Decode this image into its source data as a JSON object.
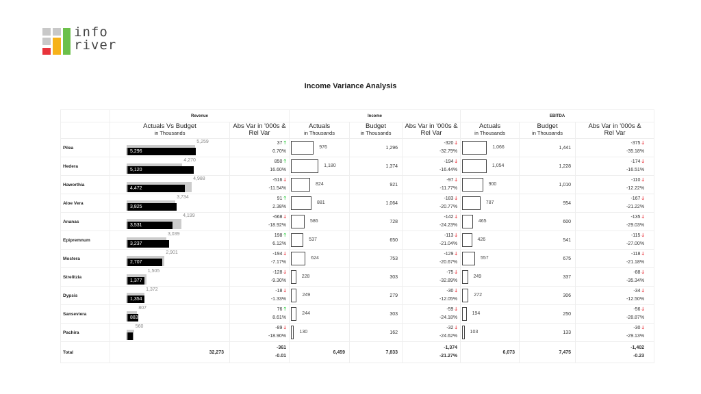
{
  "logo": {
    "line1": "info",
    "line2": "river",
    "colors": {
      "gray": "#c8c8c8",
      "red": "#e8333b",
      "orange": "#f6b21a",
      "green": "#6cc04a"
    }
  },
  "title": "Income Variance Analysis",
  "groups": [
    "Revenue",
    "Income",
    "EBITDA"
  ],
  "headers": {
    "rev_chart": {
      "main": "Actuals Vs Budget",
      "sub": "in Thousands"
    },
    "var": {
      "main": "Abs Var in '000s &",
      "sub": "Rel Var"
    },
    "actuals": {
      "main": "Actuals",
      "sub": "in Thousands"
    },
    "budget": {
      "main": "Budget",
      "sub": "in Thousands"
    }
  },
  "rows": [
    {
      "name": "Pilea",
      "rev_act": "5,296",
      "rev_bud": "5,259",
      "rev_abs": "37",
      "rev_rel": "0.70%",
      "rev_dir": "up",
      "inc_act": "976",
      "inc_bud": "1,296",
      "inc_abs": "-320",
      "inc_rel": "-32.79%",
      "eb_act": "1,066",
      "eb_bud": "1,441",
      "eb_abs": "-375",
      "eb_rel": "-35.18%"
    },
    {
      "name": "Hedera",
      "rev_act": "5,120",
      "rev_bud": "4,270",
      "rev_abs": "850",
      "rev_rel": "16.60%",
      "rev_dir": "up",
      "inc_act": "1,180",
      "inc_bud": "1,374",
      "inc_abs": "-194",
      "inc_rel": "-16.44%",
      "eb_act": "1,054",
      "eb_bud": "1,228",
      "eb_abs": "-174",
      "eb_rel": "-16.51%"
    },
    {
      "name": "Haworthia",
      "rev_act": "4,472",
      "rev_bud": "4,988",
      "rev_abs": "-516",
      "rev_rel": "-11.54%",
      "rev_dir": "dn",
      "inc_act": "824",
      "inc_bud": "921",
      "inc_abs": "-97",
      "inc_rel": "-11.77%",
      "eb_act": "900",
      "eb_bud": "1,010",
      "eb_abs": "-110",
      "eb_rel": "-12.22%"
    },
    {
      "name": "Aloe Vera",
      "rev_act": "3,825",
      "rev_bud": "3,734",
      "rev_abs": "91",
      "rev_rel": "2.38%",
      "rev_dir": "up",
      "inc_act": "881",
      "inc_bud": "1,064",
      "inc_abs": "-183",
      "inc_rel": "-20.77%",
      "eb_act": "787",
      "eb_bud": "954",
      "eb_abs": "-167",
      "eb_rel": "-21.22%"
    },
    {
      "name": "Ananas",
      "rev_act": "3,531",
      "rev_bud": "4,199",
      "rev_abs": "-668",
      "rev_rel": "-18.92%",
      "rev_dir": "dn",
      "inc_act": "586",
      "inc_bud": "728",
      "inc_abs": "-142",
      "inc_rel": "-24.23%",
      "eb_act": "465",
      "eb_bud": "600",
      "eb_abs": "-135",
      "eb_rel": "-29.03%"
    },
    {
      "name": "Epipremnum",
      "rev_act": "3,237",
      "rev_bud": "3,039",
      "rev_abs": "198",
      "rev_rel": "6.12%",
      "rev_dir": "up",
      "inc_act": "537",
      "inc_bud": "650",
      "inc_abs": "-113",
      "inc_rel": "-21.04%",
      "eb_act": "426",
      "eb_bud": "541",
      "eb_abs": "-115",
      "eb_rel": "-27.00%"
    },
    {
      "name": "Mostera",
      "rev_act": "2,707",
      "rev_bud": "2,901",
      "rev_abs": "-194",
      "rev_rel": "-7.17%",
      "rev_dir": "dn",
      "inc_act": "624",
      "inc_bud": "753",
      "inc_abs": "-129",
      "inc_rel": "-20.67%",
      "eb_act": "557",
      "eb_bud": "675",
      "eb_abs": "-118",
      "eb_rel": "-21.18%"
    },
    {
      "name": "Strelitzia",
      "rev_act": "1,377",
      "rev_bud": "1,505",
      "rev_abs": "-128",
      "rev_rel": "-9.30%",
      "rev_dir": "dn",
      "inc_act": "228",
      "inc_bud": "303",
      "inc_abs": "-75",
      "inc_rel": "-32.89%",
      "eb_act": "249",
      "eb_bud": "337",
      "eb_abs": "-88",
      "eb_rel": "-35.34%"
    },
    {
      "name": "Dypsis",
      "rev_act": "1,354",
      "rev_bud": "1,372",
      "rev_abs": "-18",
      "rev_rel": "-1.33%",
      "rev_dir": "dn",
      "inc_act": "249",
      "inc_bud": "279",
      "inc_abs": "-30",
      "inc_rel": "-12.05%",
      "eb_act": "272",
      "eb_bud": "306",
      "eb_abs": "-34",
      "eb_rel": "-12.50%"
    },
    {
      "name": "Sanseviera",
      "rev_act": "883",
      "rev_bud": "807",
      "rev_abs": "76",
      "rev_rel": "8.61%",
      "rev_dir": "up",
      "inc_act": "244",
      "inc_bud": "303",
      "inc_abs": "-59",
      "inc_rel": "-24.18%",
      "eb_act": "194",
      "eb_bud": "250",
      "eb_abs": "-56",
      "eb_rel": "-28.87%"
    },
    {
      "name": "Pachira",
      "rev_act": "",
      "rev_bud": "560",
      "rev_abs": "-89",
      "rev_rel": "-18.90%",
      "rev_dir": "dn",
      "inc_act": "130",
      "inc_bud": "162",
      "inc_abs": "-32",
      "inc_rel": "-24.62%",
      "eb_act": "103",
      "eb_bud": "133",
      "eb_abs": "-30",
      "eb_rel": "-29.13%"
    }
  ],
  "pachira_rev_act_value": 471,
  "total": {
    "name": "Total",
    "rev_act": "32,273",
    "rev_abs": "-361",
    "rev_rel": "-0.01",
    "inc_act": "6,459",
    "inc_bud": "7,833",
    "inc_abs": "-1,374",
    "inc_rel": "-21.27%",
    "eb_act": "6,073",
    "eb_bud": "7,475",
    "eb_abs": "-1,402",
    "eb_rel": "-0.23"
  },
  "arrows": {
    "up": "🡑",
    "dn": "🡓"
  }
}
